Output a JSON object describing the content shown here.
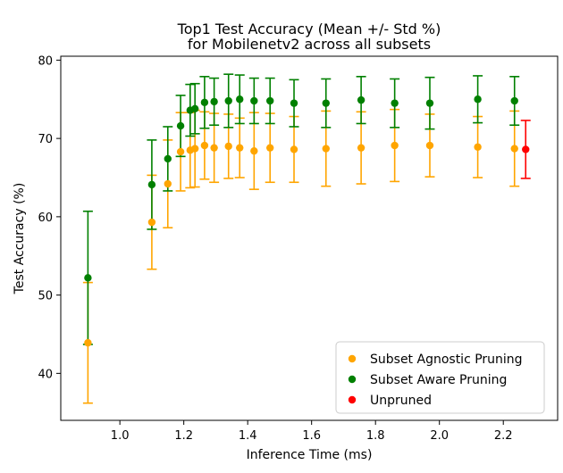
{
  "chart_data": {
    "type": "scatter",
    "title_lines": [
      "Top1 Test Accuracy (Mean +/- Std %)",
      "for Mobilenetv2 across all subsets"
    ],
    "xlabel": "Inference Time (ms)",
    "ylabel": "Test Accuracy (%)",
    "xlim": [
      0.815,
      2.37
    ],
    "ylim": [
      34.0,
      80.5
    ],
    "xticks": [
      1.0,
      1.2,
      1.4,
      1.6,
      1.8,
      2.0,
      2.2
    ],
    "xtick_labels": [
      "1.0",
      "1.2",
      "1.4",
      "1.6",
      "1.8",
      "2.0",
      "2.2"
    ],
    "yticks": [
      40,
      50,
      60,
      70,
      80
    ],
    "ytick_labels": [
      "40",
      "50",
      "60",
      "70",
      "80"
    ],
    "grid": false,
    "legend_position": "lower-right",
    "series": [
      {
        "name": "Subset Agnostic Pruning",
        "color": "#ffa500",
        "points": [
          {
            "x": 0.9,
            "y": 43.9,
            "err": 7.7
          },
          {
            "x": 1.1,
            "y": 59.3,
            "err": 6.0
          },
          {
            "x": 1.15,
            "y": 64.2,
            "err": 5.6
          },
          {
            "x": 1.19,
            "y": 68.3,
            "err": 5.0
          },
          {
            "x": 1.22,
            "y": 68.5,
            "err": 4.8
          },
          {
            "x": 1.235,
            "y": 68.7,
            "err": 4.9
          },
          {
            "x": 1.265,
            "y": 69.1,
            "err": 4.3
          },
          {
            "x": 1.295,
            "y": 68.8,
            "err": 4.4
          },
          {
            "x": 1.34,
            "y": 69.0,
            "err": 4.1
          },
          {
            "x": 1.375,
            "y": 68.8,
            "err": 3.8
          },
          {
            "x": 1.42,
            "y": 68.4,
            "err": 4.9
          },
          {
            "x": 1.47,
            "y": 68.8,
            "err": 4.4
          },
          {
            "x": 1.545,
            "y": 68.6,
            "err": 4.2
          },
          {
            "x": 1.645,
            "y": 68.7,
            "err": 4.8
          },
          {
            "x": 1.755,
            "y": 68.8,
            "err": 4.6
          },
          {
            "x": 1.86,
            "y": 69.1,
            "err": 4.6
          },
          {
            "x": 1.97,
            "y": 69.1,
            "err": 4.0
          },
          {
            "x": 2.12,
            "y": 68.9,
            "err": 3.9
          },
          {
            "x": 2.235,
            "y": 68.7,
            "err": 4.8
          }
        ]
      },
      {
        "name": "Subset Aware Pruning",
        "color": "#008000",
        "points": [
          {
            "x": 0.9,
            "y": 52.2,
            "err": 8.5
          },
          {
            "x": 1.1,
            "y": 64.1,
            "err": 5.7
          },
          {
            "x": 1.15,
            "y": 67.4,
            "err": 4.1
          },
          {
            "x": 1.19,
            "y": 71.6,
            "err": 3.9
          },
          {
            "x": 1.22,
            "y": 73.6,
            "err": 3.3
          },
          {
            "x": 1.235,
            "y": 73.8,
            "err": 3.2
          },
          {
            "x": 1.265,
            "y": 74.6,
            "err": 3.3
          },
          {
            "x": 1.295,
            "y": 74.7,
            "err": 3.0
          },
          {
            "x": 1.34,
            "y": 74.8,
            "err": 3.4
          },
          {
            "x": 1.375,
            "y": 75.0,
            "err": 3.1
          },
          {
            "x": 1.42,
            "y": 74.8,
            "err": 2.9
          },
          {
            "x": 1.47,
            "y": 74.8,
            "err": 2.9
          },
          {
            "x": 1.545,
            "y": 74.5,
            "err": 3.0
          },
          {
            "x": 1.645,
            "y": 74.5,
            "err": 3.1
          },
          {
            "x": 1.755,
            "y": 74.9,
            "err": 3.0
          },
          {
            "x": 1.86,
            "y": 74.5,
            "err": 3.1
          },
          {
            "x": 1.97,
            "y": 74.5,
            "err": 3.3
          },
          {
            "x": 2.12,
            "y": 75.0,
            "err": 3.0
          },
          {
            "x": 2.235,
            "y": 74.8,
            "err": 3.1
          }
        ]
      },
      {
        "name": "Unpruned",
        "color": "#ff0000",
        "points": [
          {
            "x": 2.27,
            "y": 68.6,
            "err": 3.7
          }
        ]
      }
    ]
  }
}
